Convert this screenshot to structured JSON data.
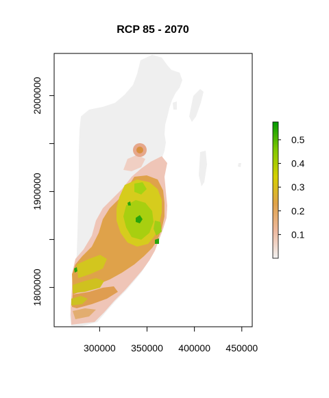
{
  "title": "RCP 85 - 2070",
  "x_axis": {
    "ticks": [
      {
        "value": 300000,
        "label": "300000"
      },
      {
        "value": 350000,
        "label": "350000"
      },
      {
        "value": 400000,
        "label": "400000"
      },
      {
        "value": 450000,
        "label": "450000"
      }
    ],
    "range": [
      252000,
      461000
    ]
  },
  "y_axis": {
    "ticks": [
      {
        "value": 1800000,
        "label": "1800000"
      },
      {
        "value": 1850000,
        "label": ""
      },
      {
        "value": 1900000,
        "label": "1900000"
      },
      {
        "value": 1950000,
        "label": ""
      },
      {
        "value": 2000000,
        "label": "2000000"
      }
    ],
    "range": [
      1759000,
      2044000
    ]
  },
  "legend": {
    "ticks": [
      {
        "value": 0.1,
        "label": "0.1"
      },
      {
        "value": 0.2,
        "label": "0.2"
      },
      {
        "value": 0.3,
        "label": "0.3"
      },
      {
        "value": 0.4,
        "label": "0.4"
      },
      {
        "value": 0.5,
        "label": "0.5"
      }
    ],
    "range": [
      0.0,
      0.575
    ],
    "colors": [
      "#f2f2f2",
      "#eeb99f",
      "#e0a34a",
      "#d5d000",
      "#7fc800",
      "#009900"
    ]
  },
  "colors": {
    "background": "#f2f2f2",
    "low": "#efc3b2",
    "mid": "#dea143",
    "high": "#d4cf22",
    "higher": "#9fd011",
    "max": "#129a09"
  }
}
